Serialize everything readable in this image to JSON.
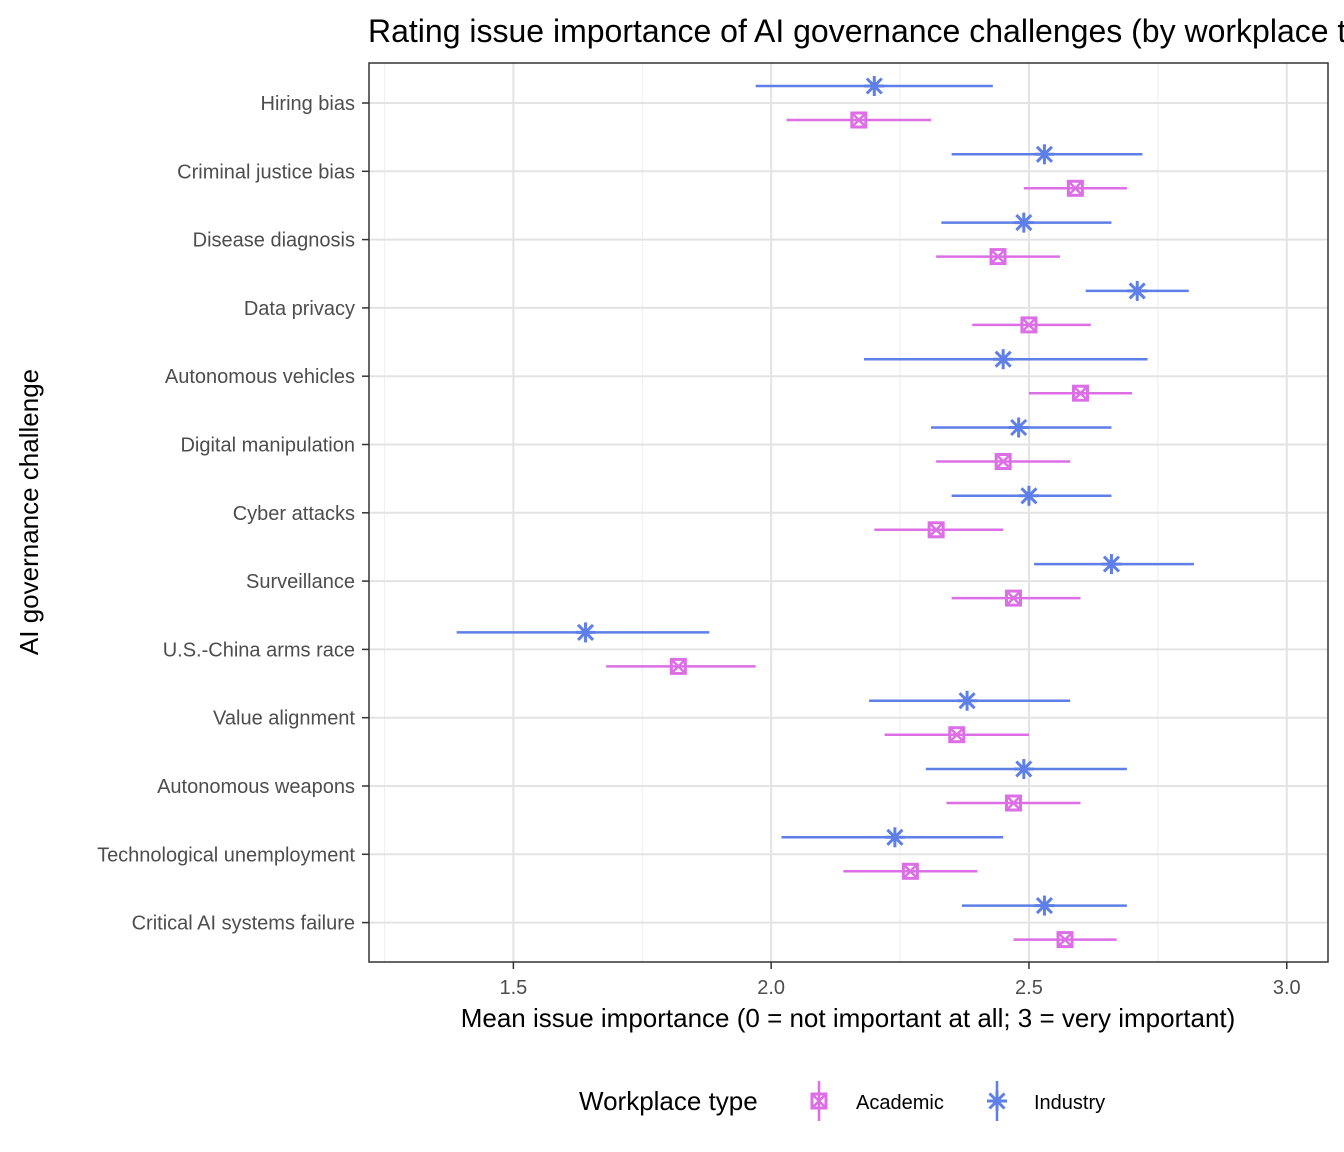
{
  "chart_data": {
    "type": "scatter",
    "subtype": "dot-and-errorbar",
    "title": "Rating issue importance of AI governance challenges (by workplace type)",
    "xlabel": "Mean issue importance (0 = not important at all; 3 = very important)",
    "ylabel": "AI governance challenge",
    "xlim": [
      1.22,
      3.08
    ],
    "x_ticks": [
      1.5,
      2.0,
      2.5,
      3.0
    ],
    "x_tick_labels": [
      "1.5",
      "2.0",
      "2.5",
      "3.0"
    ],
    "grid": true,
    "legend": {
      "title": "Workplace type",
      "position": "bottom"
    },
    "categories": [
      "Hiring bias",
      "Criminal justice bias",
      "Disease diagnosis",
      "Data privacy",
      "Autonomous vehicles",
      "Digital manipulation",
      "Cyber attacks",
      "Surveillance",
      "U.S.-China arms race",
      "Value alignment",
      "Autonomous weapons",
      "Technological unemployment",
      "Critical AI systems failure"
    ],
    "series": [
      {
        "name": "Industry",
        "color": "#5e7ee8",
        "marker": "asterisk",
        "mean": [
          2.2,
          2.53,
          2.49,
          2.71,
          2.45,
          2.48,
          2.5,
          2.66,
          1.64,
          2.38,
          2.49,
          2.24,
          2.53
        ],
        "lower": [
          1.97,
          2.35,
          2.33,
          2.61,
          2.18,
          2.31,
          2.35,
          2.51,
          1.39,
          2.19,
          2.3,
          2.02,
          2.37
        ],
        "upper": [
          2.43,
          2.72,
          2.66,
          2.81,
          2.73,
          2.66,
          2.66,
          2.82,
          1.88,
          2.58,
          2.69,
          2.45,
          2.69
        ]
      },
      {
        "name": "Academic",
        "color": "#dc6ee6",
        "marker": "square-x",
        "mean": [
          2.17,
          2.59,
          2.44,
          2.5,
          2.6,
          2.45,
          2.32,
          2.47,
          1.82,
          2.36,
          2.47,
          2.27,
          2.57
        ],
        "lower": [
          2.03,
          2.49,
          2.32,
          2.39,
          2.5,
          2.32,
          2.2,
          2.35,
          1.68,
          2.22,
          2.34,
          2.14,
          2.47
        ],
        "upper": [
          2.31,
          2.69,
          2.56,
          2.62,
          2.7,
          2.58,
          2.45,
          2.6,
          1.97,
          2.5,
          2.6,
          2.4,
          2.67
        ]
      }
    ]
  }
}
